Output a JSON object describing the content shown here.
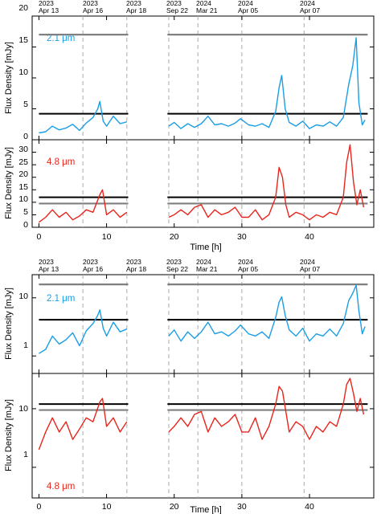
{
  "chart_data": [
    {
      "type": "line",
      "panel": "top-linear-2.1um",
      "yscale": "linear",
      "ylabel": "Flux Density [mJy]",
      "ylim": [
        0,
        20
      ],
      "yticks": [
        0,
        5,
        10,
        15,
        20
      ],
      "xlim": [
        -1,
        49.5
      ],
      "series_label": "2.1 μm",
      "color": "#1a9ee6",
      "gaps": [
        [
          13.2,
          19.0
        ]
      ],
      "levels": [
        {
          "name": "",
          "value": 17.0,
          "color": "#808080"
        },
        {
          "name": "",
          "value": 4.2,
          "color": "#000000"
        }
      ],
      "series": [
        {
          "name": "2.1 μm",
          "x": [
            0.0,
            1.0,
            2.0,
            3.0,
            4.0,
            5.0,
            6.0,
            7.0,
            8.0,
            8.7,
            9.0,
            9.5,
            10.0,
            11.0,
            12.0,
            13.0,
            19.2,
            20.0,
            21.0,
            22.0,
            23.0,
            24.0,
            25.0,
            26.0,
            27.0,
            28.0,
            29.0,
            29.8,
            31.0,
            32.0,
            33.0,
            34.0,
            35.0,
            35.5,
            35.9,
            36.4,
            37.0,
            38.0,
            39.0,
            40.0,
            41.0,
            42.0,
            43.0,
            44.0,
            45.0,
            45.8,
            46.4,
            46.9,
            47.3,
            47.8,
            48.2
          ],
          "y": [
            1.1,
            1.3,
            2.2,
            1.6,
            1.9,
            2.5,
            1.5,
            2.7,
            3.6,
            5.0,
            6.2,
            3.0,
            2.2,
            3.8,
            2.6,
            2.9,
            2.2,
            2.8,
            1.8,
            2.6,
            2.0,
            2.6,
            3.8,
            2.4,
            2.6,
            2.2,
            2.7,
            3.4,
            2.4,
            2.2,
            2.6,
            2.0,
            4.6,
            8.4,
            10.4,
            5.0,
            2.8,
            2.2,
            3.0,
            1.8,
            2.4,
            2.2,
            2.9,
            2.2,
            3.6,
            9.0,
            12.0,
            16.5,
            6.0,
            2.4,
            3.2
          ]
        }
      ]
    },
    {
      "type": "line",
      "panel": "second-linear-4.8um",
      "yscale": "linear",
      "ylabel": "Flux Density [mJy]",
      "ylim": [
        0,
        35
      ],
      "yticks": [
        0,
        5,
        10,
        15,
        20,
        25,
        30
      ],
      "xlim": [
        -1,
        49.5
      ],
      "series_label": "4.8 μm",
      "color": "#e8251c",
      "gaps": [
        [
          13.2,
          19.0
        ]
      ],
      "levels": [
        {
          "name": "",
          "value": 12.0,
          "color": "#000000"
        },
        {
          "name": "",
          "value": 9.5,
          "color": "#808080"
        }
      ],
      "series": [
        {
          "name": "4.8 μm",
          "x": [
            0.0,
            1.0,
            2.0,
            3.0,
            4.0,
            5.0,
            6.0,
            7.0,
            8.0,
            9.0,
            9.4,
            10.0,
            11.0,
            12.0,
            13.0,
            19.2,
            20.0,
            21.0,
            22.0,
            23.0,
            24.0,
            25.0,
            26.0,
            27.0,
            28.0,
            29.0,
            30.0,
            31.0,
            32.0,
            33.0,
            34.0,
            35.0,
            35.5,
            36.0,
            36.5,
            37.0,
            38.0,
            39.0,
            40.0,
            41.0,
            42.0,
            43.0,
            44.0,
            45.0,
            45.5,
            46.0,
            46.5,
            47.0,
            47.5,
            48.0
          ],
          "y": [
            2.0,
            4.0,
            7.0,
            4.0,
            6.0,
            3.0,
            4.5,
            7.0,
            6.0,
            13.0,
            15.0,
            5.0,
            7.0,
            4.0,
            6.0,
            4.0,
            5.0,
            7.0,
            5.0,
            8.0,
            9.0,
            4.0,
            7.0,
            5.0,
            6.0,
            8.0,
            4.0,
            4.0,
            7.0,
            3.0,
            5.0,
            12.0,
            24.0,
            20.0,
            9.0,
            4.0,
            6.0,
            5.0,
            3.0,
            5.0,
            4.0,
            6.0,
            5.0,
            12.0,
            26.0,
            33.0,
            18.0,
            9.0,
            15.0,
            8.0
          ]
        }
      ]
    },
    {
      "type": "line",
      "panel": "third-log-2.1um",
      "yscale": "log",
      "ylabel": "Flux Density [mJy]",
      "ylim": [
        0.5,
        25
      ],
      "yticks": [
        1,
        10
      ],
      "xlim": [
        -1,
        49.5
      ],
      "series_label": "2.1 μm",
      "color": "#1a9ee6",
      "gaps": [
        [
          13.2,
          19.0
        ]
      ],
      "levels": [
        {
          "name": "",
          "value": 17.0,
          "color": "#808080"
        },
        {
          "name": "",
          "value": 4.2,
          "color": "#000000"
        }
      ],
      "series": [
        {
          "name": "2.1 μm",
          "x": [
            0.0,
            1.0,
            2.0,
            3.0,
            4.0,
            5.0,
            6.0,
            7.0,
            8.0,
            8.7,
            9.0,
            9.5,
            10.0,
            11.0,
            12.0,
            13.0,
            19.2,
            20.0,
            21.0,
            22.0,
            23.0,
            24.0,
            25.0,
            26.0,
            27.0,
            28.0,
            29.0,
            29.8,
            31.0,
            32.0,
            33.0,
            34.0,
            35.0,
            35.5,
            35.9,
            36.4,
            37.0,
            38.0,
            39.0,
            40.0,
            41.0,
            42.0,
            43.0,
            44.0,
            45.0,
            45.8,
            46.4,
            46.9,
            47.3,
            47.8,
            48.2
          ],
          "y": [
            1.1,
            1.3,
            2.2,
            1.6,
            1.9,
            2.5,
            1.5,
            2.7,
            3.6,
            5.0,
            6.2,
            3.0,
            2.2,
            3.8,
            2.6,
            2.9,
            2.2,
            2.8,
            1.8,
            2.6,
            2.0,
            2.6,
            3.8,
            2.4,
            2.6,
            2.2,
            2.7,
            3.4,
            2.4,
            2.2,
            2.6,
            2.0,
            4.6,
            8.4,
            10.4,
            5.0,
            2.8,
            2.2,
            3.0,
            1.8,
            2.4,
            2.2,
            2.9,
            2.2,
            3.6,
            9.0,
            12.0,
            16.5,
            6.0,
            2.4,
            3.2
          ]
        }
      ]
    },
    {
      "type": "line",
      "panel": "bottom-log-4.8um",
      "yscale": "log",
      "ylabel": "Flux Density [mJy]",
      "ylim": [
        0.3,
        40
      ],
      "yticks": [
        1,
        10
      ],
      "xlim": [
        -1,
        49.5
      ],
      "series_label": "4.8 μm",
      "color": "#e8251c",
      "gaps": [
        [
          13.2,
          19.0
        ]
      ],
      "levels": [
        {
          "name": "",
          "value": 12.0,
          "color": "#000000"
        },
        {
          "name": "",
          "value": 9.5,
          "color": "#808080"
        }
      ],
      "series": [
        {
          "name": "4.8 μm",
          "x": [
            0.0,
            1.0,
            2.0,
            3.0,
            4.0,
            5.0,
            6.0,
            7.0,
            8.0,
            9.0,
            9.4,
            10.0,
            11.0,
            12.0,
            13.0,
            19.2,
            20.0,
            21.0,
            22.0,
            23.0,
            24.0,
            25.0,
            26.0,
            27.0,
            28.0,
            29.0,
            30.0,
            31.0,
            32.0,
            33.0,
            34.0,
            35.0,
            35.5,
            36.0,
            36.5,
            37.0,
            38.0,
            39.0,
            40.0,
            41.0,
            42.0,
            43.0,
            44.0,
            45.0,
            45.5,
            46.0,
            46.5,
            47.0,
            47.5,
            48.0
          ],
          "y": [
            2.0,
            4.0,
            7.0,
            4.0,
            6.0,
            3.0,
            4.5,
            7.0,
            6.0,
            13.0,
            15.0,
            5.0,
            7.0,
            4.0,
            6.0,
            4.0,
            5.0,
            7.0,
            5.0,
            8.0,
            9.0,
            4.0,
            7.0,
            5.0,
            6.0,
            8.0,
            4.0,
            4.0,
            7.0,
            3.0,
            5.0,
            12.0,
            24.0,
            20.0,
            9.0,
            4.0,
            6.0,
            5.0,
            3.0,
            5.0,
            4.0,
            6.0,
            5.0,
            12.0,
            26.0,
            33.0,
            18.0,
            9.0,
            15.0,
            8.0
          ]
        }
      ]
    }
  ],
  "xaxis": {
    "label": "Time [h]",
    "ticks": [
      0,
      10,
      20,
      30,
      40
    ]
  },
  "epochs": [
    {
      "x": 0.0,
      "year": "2023",
      "date": "Apr 13"
    },
    {
      "x": 6.5,
      "year": "2023",
      "date": "Apr 16"
    },
    {
      "x": 13.0,
      "year": "2023",
      "date": "Apr 18"
    },
    {
      "x": 19.2,
      "year": "2023",
      "date": "Sep 22"
    },
    {
      "x": 23.5,
      "year": "2024",
      "date": "Mar 21"
    },
    {
      "x": 30.0,
      "year": "2024",
      "date": "Apr 05"
    },
    {
      "x": 39.2,
      "year": "2024",
      "date": "Apr 07"
    }
  ],
  "colors": {
    "blue": "#1a9ee6",
    "red": "#e8251c",
    "level_gray": "#808080",
    "level_black": "#000000",
    "epoch_dash": "#aaaaaa"
  }
}
